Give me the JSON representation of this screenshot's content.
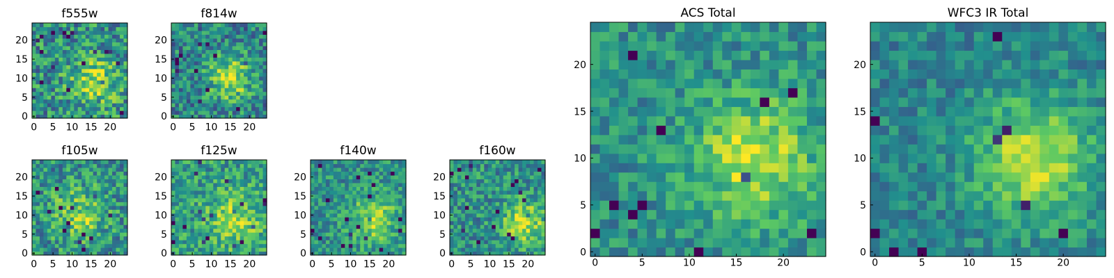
{
  "figure": {
    "colormap": "viridis",
    "palette": [
      "#440154",
      "#3b528b",
      "#21908d",
      "#5dc963",
      "#fde725"
    ]
  },
  "chart_data": [
    {
      "id": "f555w",
      "type": "heatmap",
      "title": "f555w",
      "grid_size": 25,
      "xlim": [
        0,
        24
      ],
      "ylim": [
        0,
        24
      ],
      "xticks": [
        "0",
        "5",
        "10",
        "15",
        "20"
      ],
      "yticks": [
        "0",
        "5",
        "10",
        "15",
        "20"
      ],
      "peak": {
        "x": 16,
        "y": 9
      },
      "blob_width": 4.5,
      "blob_strength": 0.35,
      "baseline": 0.5,
      "noise": 0.55
    },
    {
      "id": "f814w",
      "type": "heatmap",
      "title": "f814w",
      "grid_size": 25,
      "xlim": [
        0,
        24
      ],
      "ylim": [
        0,
        24
      ],
      "xticks": [
        "0",
        "5",
        "10",
        "15",
        "20"
      ],
      "yticks": [
        "0",
        "5",
        "10",
        "15",
        "20"
      ],
      "peak": {
        "x": 15,
        "y": 10
      },
      "blob_width": 4.0,
      "blob_strength": 0.45,
      "baseline": 0.45,
      "noise": 0.5
    },
    {
      "id": "f105w",
      "type": "heatmap",
      "title": "f105w",
      "grid_size": 25,
      "xlim": [
        0,
        24
      ],
      "ylim": [
        0,
        24
      ],
      "xticks": [
        "0",
        "5",
        "10",
        "15",
        "20"
      ],
      "yticks": [
        "0",
        "5",
        "10",
        "15",
        "20"
      ],
      "peak": {
        "x": 12,
        "y": 10
      },
      "blob_width": 5.0,
      "blob_strength": 0.3,
      "baseline": 0.5,
      "noise": 0.5
    },
    {
      "id": "f125w",
      "type": "heatmap",
      "title": "f125w",
      "grid_size": 25,
      "xlim": [
        0,
        24
      ],
      "ylim": [
        0,
        24
      ],
      "xticks": [
        "0",
        "5",
        "10",
        "15",
        "20"
      ],
      "yticks": [
        "0",
        "5",
        "10",
        "15",
        "20"
      ],
      "peak": {
        "x": 16,
        "y": 9
      },
      "blob_width": 5.0,
      "blob_strength": 0.3,
      "baseline": 0.55,
      "noise": 0.45
    },
    {
      "id": "f140w",
      "type": "heatmap",
      "title": "f140w",
      "grid_size": 25,
      "xlim": [
        0,
        24
      ],
      "ylim": [
        0,
        24
      ],
      "xticks": [
        "0",
        "5",
        "10",
        "15",
        "20"
      ],
      "yticks": [
        "0",
        "5",
        "10",
        "15",
        "20"
      ],
      "peak": {
        "x": 16,
        "y": 9
      },
      "blob_width": 4.5,
      "blob_strength": 0.35,
      "baseline": 0.5,
      "noise": 0.4
    },
    {
      "id": "f160w",
      "type": "heatmap",
      "title": "f160w",
      "grid_size": 25,
      "xlim": [
        0,
        24
      ],
      "ylim": [
        0,
        24
      ],
      "xticks": [
        "0",
        "5",
        "10",
        "15",
        "20"
      ],
      "yticks": [
        "0",
        "5",
        "10",
        "15",
        "20"
      ],
      "peak": {
        "x": 19,
        "y": 8
      },
      "blob_width": 4.0,
      "blob_strength": 0.4,
      "baseline": 0.5,
      "noise": 0.45
    },
    {
      "id": "acs_total",
      "type": "heatmap",
      "title": "ACS Total",
      "grid_size": 25,
      "xlim": [
        0,
        24
      ],
      "ylim": [
        0,
        24
      ],
      "xticks": [
        "0",
        "5",
        "10",
        "15",
        "20"
      ],
      "yticks": [
        "0",
        "5",
        "10",
        "15",
        "20"
      ],
      "peak": {
        "x": 17,
        "y": 10
      },
      "blob_width": 4.5,
      "blob_strength": 0.4,
      "baseline": 0.5,
      "noise": 0.35
    },
    {
      "id": "wfc3_ir_total",
      "type": "heatmap",
      "title": "WFC3 IR Total",
      "grid_size": 25,
      "xlim": [
        0,
        24
      ],
      "ylim": [
        0,
        24
      ],
      "xticks": [
        "0",
        "5",
        "10",
        "15",
        "20"
      ],
      "yticks": [
        "0",
        "5",
        "10",
        "15",
        "20"
      ],
      "peak": {
        "x": 17,
        "y": 10
      },
      "blob_width": 4.5,
      "blob_strength": 0.45,
      "baseline": 0.45,
      "noise": 0.3
    }
  ]
}
